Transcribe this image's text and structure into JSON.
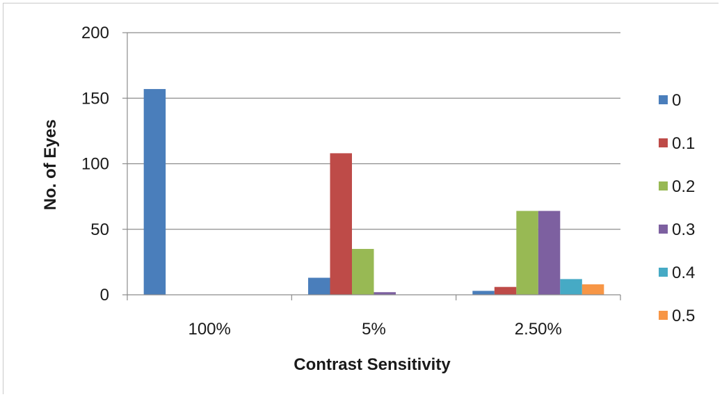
{
  "chart_data": {
    "type": "bar",
    "title": "",
    "xlabel": "Contrast Sensitivity",
    "ylabel": "No. of Eyes",
    "categories": [
      "100%",
      "5%",
      "2.50%"
    ],
    "ylim": [
      0,
      200
    ],
    "yticks": [
      0,
      50,
      100,
      150,
      200
    ],
    "grid": true,
    "legend_position": "right",
    "series": [
      {
        "name": "0",
        "color": "#4a7ebb",
        "values": [
          157,
          13,
          3
        ]
      },
      {
        "name": "0.1",
        "color": "#be4b48",
        "values": [
          0,
          108,
          6
        ]
      },
      {
        "name": "0.2",
        "color": "#98b954",
        "values": [
          0,
          35,
          64
        ]
      },
      {
        "name": "0.3",
        "color": "#7d60a0",
        "values": [
          0,
          2,
          64
        ]
      },
      {
        "name": "0.4",
        "color": "#46aac5",
        "values": [
          0,
          0,
          12
        ]
      },
      {
        "name": "0.5",
        "color": "#f79646",
        "values": [
          0,
          0,
          8
        ]
      }
    ]
  }
}
